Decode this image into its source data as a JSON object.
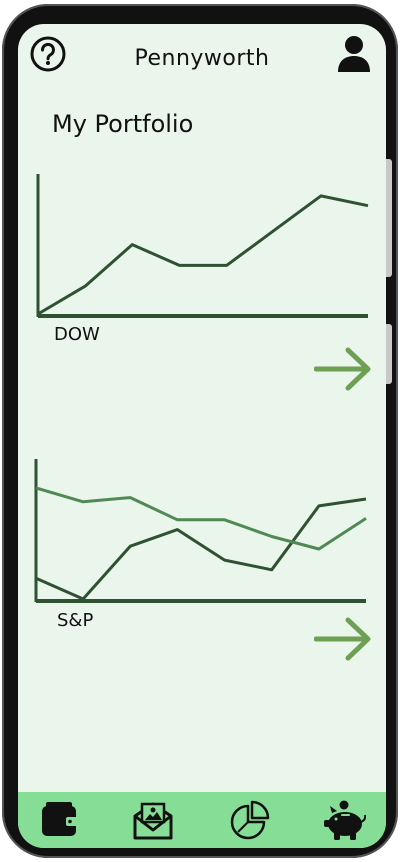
{
  "header": {
    "title": "Pennyworth",
    "help_icon": "help-circle-icon",
    "profile_icon": "user-icon"
  },
  "page": {
    "title": "My Portfolio"
  },
  "charts": [
    {
      "label": "DOW",
      "series": [
        {
          "values": [
            0,
            2,
            5,
            3.5,
            3.5,
            6,
            8.5,
            7.8
          ],
          "color": "#2f5232"
        }
      ]
    },
    {
      "label": "S&P",
      "series": [
        {
          "values": [
            1.5,
            0,
            3.8,
            5,
            2.8,
            2.1,
            6.7,
            7.2
          ],
          "color": "#2f5232"
        },
        {
          "values": [
            8,
            7,
            7.3,
            5.7,
            5.7,
            4.5,
            3.6,
            5.8
          ],
          "color": "#4f8a55"
        }
      ]
    }
  ],
  "colors": {
    "accent": "#6ea054",
    "tab_bar": "#86de96",
    "screen_bg": "#eaf5ec"
  },
  "tabs": [
    {
      "name": "wallet",
      "icon": "wallet-icon"
    },
    {
      "name": "mail",
      "icon": "envelope-photo-icon"
    },
    {
      "name": "pie",
      "icon": "pie-chart-icon"
    },
    {
      "name": "piggy",
      "icon": "piggy-bank-icon"
    }
  ]
}
